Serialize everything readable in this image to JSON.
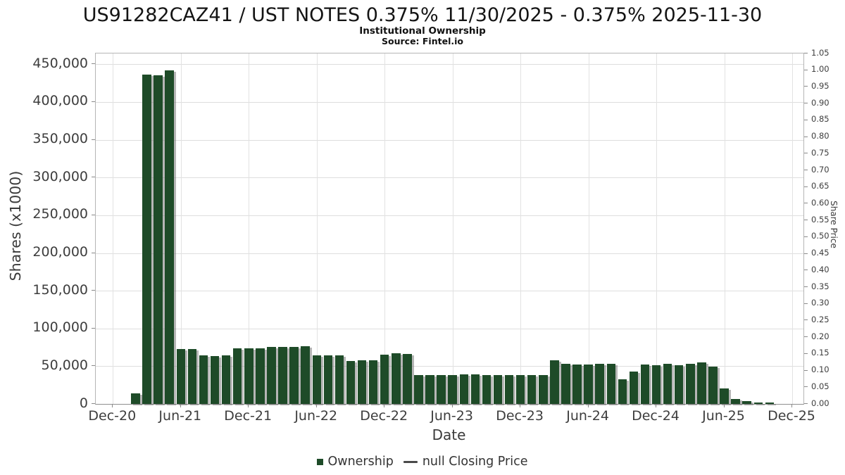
{
  "header": {
    "title": "US91282CAZ41 / UST NOTES 0.375% 11/30/2025 - 0.375% 2025-11-30",
    "subtitle": "Institutional Ownership",
    "source": "Source: Fintel.io"
  },
  "chart_data": {
    "type": "bar",
    "title": "US91282CAZ41 / UST NOTES 0.375% 11/30/2025 - 0.375% 2025-11-30",
    "subtitle": "Institutional Ownership",
    "source": "Source: Fintel.io",
    "xlabel": "Date",
    "ylabel_left": "Shares (x1000)",
    "ylabel_right": "Share Price",
    "bar_color": "#1e4b28",
    "grid": true,
    "legend_position": "bottom-center",
    "x_ticks": [
      "Dec-20",
      "Jun-21",
      "Dec-21",
      "Jun-22",
      "Dec-22",
      "Jun-23",
      "Dec-23",
      "Jun-24",
      "Dec-24",
      "Jun-25",
      "Dec-25"
    ],
    "y_ticks_left": [
      "0",
      "50,000",
      "100,000",
      "150,000",
      "200,000",
      "250,000",
      "300,000",
      "350,000",
      "400,000",
      "450,000"
    ],
    "y_ticks_right": [
      "0.00",
      "0.05",
      "0.10",
      "0.15",
      "0.20",
      "0.25",
      "0.30",
      "0.35",
      "0.40",
      "0.45",
      "0.50",
      "0.55",
      "0.60",
      "0.65",
      "0.70",
      "0.75",
      "0.80",
      "0.85",
      "0.90",
      "0.95",
      "1.00",
      "1.05"
    ],
    "ylim_left": [
      0,
      464000
    ],
    "ylim_right": [
      0,
      1.05
    ],
    "legend": [
      {
        "label": "Ownership",
        "marker": "legend-square-icon",
        "color": "#1e4b28"
      },
      {
        "label": "null Closing Price",
        "marker": "legend-line-icon",
        "color": "#4a4a4a"
      }
    ],
    "series": [
      {
        "name": "Ownership",
        "points": [
          {
            "month": "Feb-21",
            "value": 14000
          },
          {
            "month": "Mar-21",
            "value": 436000
          },
          {
            "month": "Apr-21",
            "value": 435500
          },
          {
            "month": "May-21",
            "value": 441500
          },
          {
            "month": "Jun-21",
            "value": 72500
          },
          {
            "month": "Jul-21",
            "value": 73000
          },
          {
            "month": "Aug-21",
            "value": 64000
          },
          {
            "month": "Sep-21",
            "value": 63500
          },
          {
            "month": "Oct-21",
            "value": 64000
          },
          {
            "month": "Nov-21",
            "value": 73500
          },
          {
            "month": "Dec-21",
            "value": 74000
          },
          {
            "month": "Jan-22",
            "value": 74000
          },
          {
            "month": "Feb-22",
            "value": 75500
          },
          {
            "month": "Mar-22",
            "value": 76000
          },
          {
            "month": "Apr-22",
            "value": 76000
          },
          {
            "month": "May-22",
            "value": 76500
          },
          {
            "month": "Jun-22",
            "value": 64000
          },
          {
            "month": "Jul-22",
            "value": 64000
          },
          {
            "month": "Aug-22",
            "value": 64500
          },
          {
            "month": "Sep-22",
            "value": 57000
          },
          {
            "month": "Oct-22",
            "value": 57500
          },
          {
            "month": "Nov-22",
            "value": 57500
          },
          {
            "month": "Dec-22",
            "value": 65000
          },
          {
            "month": "Jan-23",
            "value": 67000
          },
          {
            "month": "Feb-23",
            "value": 66500
          },
          {
            "month": "Mar-23",
            "value": 38000
          },
          {
            "month": "Apr-23",
            "value": 38500
          },
          {
            "month": "May-23",
            "value": 38500
          },
          {
            "month": "Jun-23",
            "value": 38500
          },
          {
            "month": "Jul-23",
            "value": 39000
          },
          {
            "month": "Aug-23",
            "value": 39000
          },
          {
            "month": "Sep-23",
            "value": 38500
          },
          {
            "month": "Oct-23",
            "value": 38000
          },
          {
            "month": "Nov-23",
            "value": 38000
          },
          {
            "month": "Dec-23",
            "value": 38000
          },
          {
            "month": "Jan-24",
            "value": 38500
          },
          {
            "month": "Feb-24",
            "value": 38000
          },
          {
            "month": "Mar-24",
            "value": 57500
          },
          {
            "month": "Apr-24",
            "value": 53000
          },
          {
            "month": "May-24",
            "value": 52500
          },
          {
            "month": "Jun-24",
            "value": 52500
          },
          {
            "month": "Jul-24",
            "value": 53000
          },
          {
            "month": "Aug-24",
            "value": 53000
          },
          {
            "month": "Sep-24",
            "value": 32500
          },
          {
            "month": "Oct-24",
            "value": 43000
          },
          {
            "month": "Nov-24",
            "value": 52000
          },
          {
            "month": "Dec-24",
            "value": 51500
          },
          {
            "month": "Jan-25",
            "value": 53000
          },
          {
            "month": "Feb-25",
            "value": 51000
          },
          {
            "month": "Mar-25",
            "value": 53000
          },
          {
            "month": "Apr-25",
            "value": 55000
          },
          {
            "month": "May-25",
            "value": 49000
          },
          {
            "month": "Jun-25",
            "value": 21000
          },
          {
            "month": "Jul-25",
            "value": 7000
          },
          {
            "month": "Aug-25",
            "value": 4000
          },
          {
            "month": "Sep-25",
            "value": 2000
          },
          {
            "month": "Oct-25",
            "value": 2000
          }
        ]
      }
    ]
  }
}
